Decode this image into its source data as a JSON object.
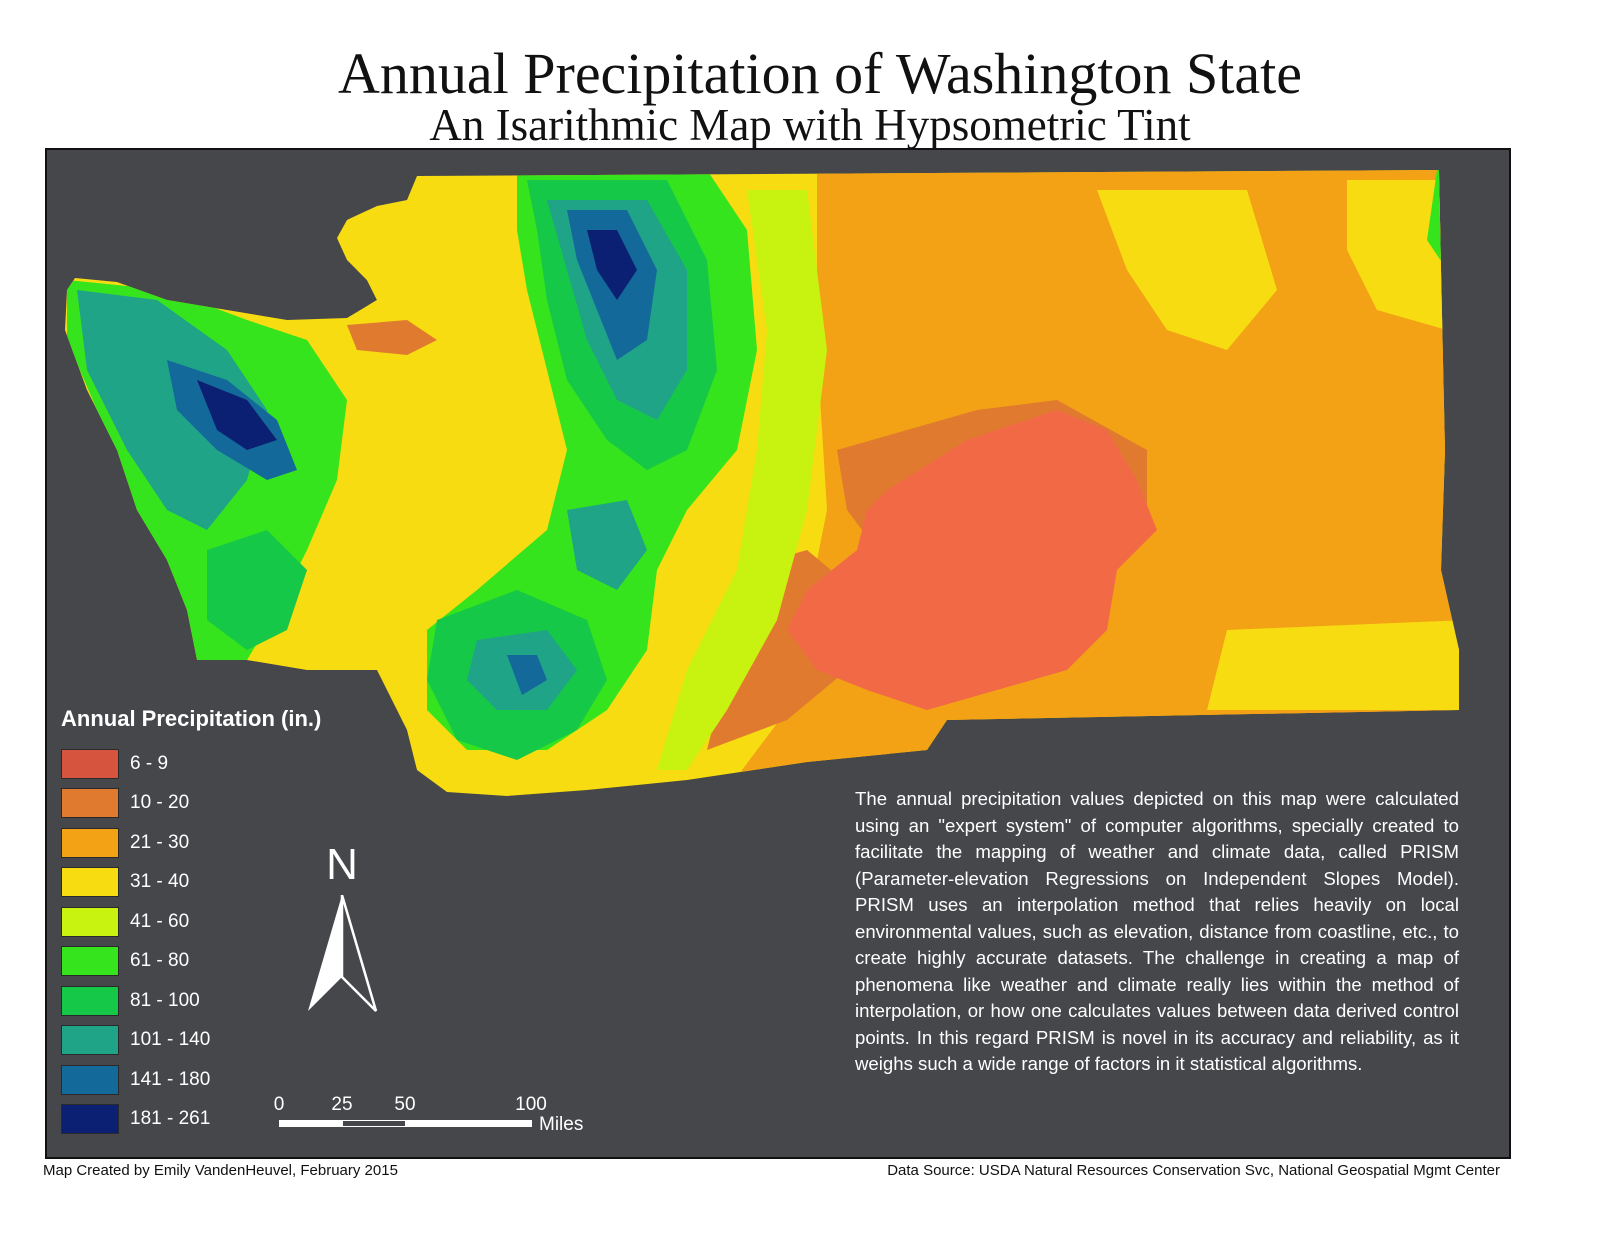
{
  "header": {
    "title": "Annual Precipitation of Washington State",
    "subtitle": "An Isarithmic Map with Hypsometric Tint"
  },
  "legend": {
    "title": "Annual Precipitation (in.)",
    "classes": [
      {
        "label": "6 - 9",
        "color": "#d6543d"
      },
      {
        "label": "10 - 20",
        "color": "#e07a2f"
      },
      {
        "label": "21 - 30",
        "color": "#f3a216"
      },
      {
        "label": "31 - 40",
        "color": "#f7dc12"
      },
      {
        "label": "41 - 60",
        "color": "#c8f20f"
      },
      {
        "label": "61 - 80",
        "color": "#35e41c"
      },
      {
        "label": "81 - 100",
        "color": "#15c847"
      },
      {
        "label": "101 - 140",
        "color": "#1fa487"
      },
      {
        "label": "141 - 180",
        "color": "#136a9a"
      },
      {
        "label": "181 - 261",
        "color": "#0b2073"
      }
    ]
  },
  "north_arrow": {
    "label": "N"
  },
  "scale_bar": {
    "ticks": [
      "0",
      "25",
      "50",
      "100"
    ],
    "units": "Miles"
  },
  "description": "The annual precipitation values depicted on this map were calculated using an \"expert system\" of computer algorithms, specially created to facilitate the mapping of weather and climate data, called PRISM (Parameter-elevation Regressions on Independent Slopes Model). PRISM uses an interpolation method that relies heavily on local environmental values, such as elevation, distance from coastline, etc., to create highly accurate datasets. The challenge in creating a map of phenomena like weather and climate really lies within the method of interpolation, or how one calculates values between data derived control points. In this regard PRISM is novel in its accuracy and reliability, as it weighs such a wide range of factors in it statistical algorithms.",
  "footer": {
    "credit": "Map Created by Emily VandenHeuvel, February 2015",
    "source": "Data Source: USDA Natural Resources Conservation Svc, National Geospatial Mgmt Center"
  },
  "colors": {
    "background": "#45474a",
    "text_on_dark": "#ffffff"
  }
}
